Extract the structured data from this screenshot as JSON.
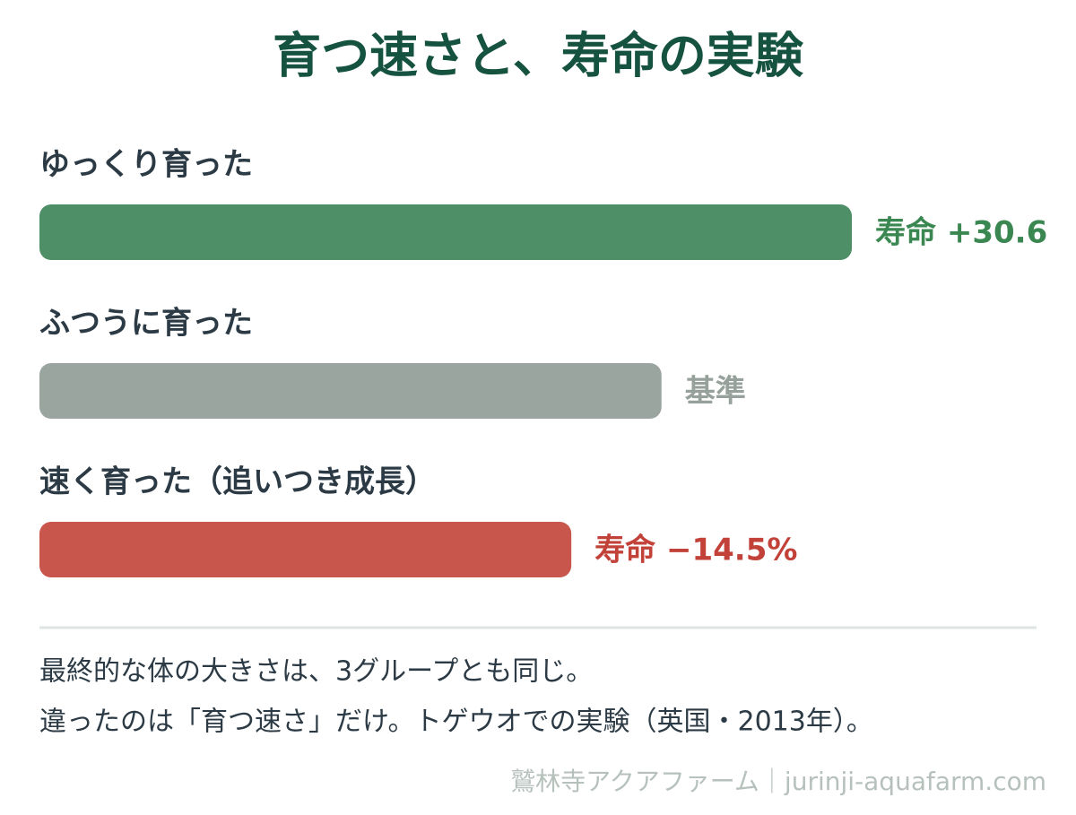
{
  "chart_data": {
    "type": "bar",
    "orientation": "horizontal",
    "title": "育つ速さと、寿命の実験",
    "categories": [
      "ゆっくり育った",
      "ふつうに育った",
      "速く育った（追いつき成長）"
    ],
    "values": [
      30.6,
      0,
      -14.5
    ],
    "value_labels": [
      "寿命 +30.6",
      "基準",
      "寿命 −14.5%"
    ],
    "colors": [
      "#4f8f68",
      "#9ba59f",
      "#c9564c"
    ],
    "label_colors": [
      "#3b8752",
      "#96a19b",
      "#c2423a"
    ],
    "xlim": [
      -100,
      60
    ],
    "notes": [
      "最終的な体の大きさは、3グループとも同じ。",
      "違ったのは「育つ速さ」だけ。トゲウオでの実験（英国・2013年）。"
    ],
    "source": "鷲林寺アクアファーム｜jurinji-aquafarm.com"
  }
}
